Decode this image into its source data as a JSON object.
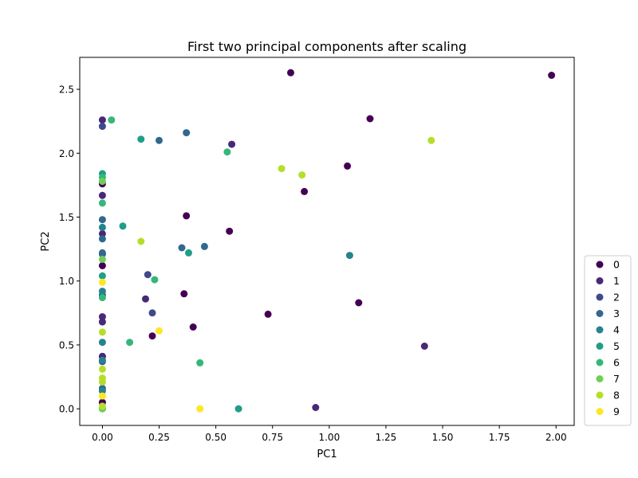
{
  "chart_data": {
    "type": "scatter",
    "title": "First two principal components after scaling",
    "xlabel": "PC1",
    "ylabel": "PC2",
    "xlim": [
      -0.1,
      2.08
    ],
    "ylim": [
      -0.13,
      2.75
    ],
    "xticks": [
      0.0,
      0.25,
      0.5,
      0.75,
      1.0,
      1.25,
      1.5,
      1.75,
      2.0
    ],
    "xtick_labels": [
      "0.00",
      "0.25",
      "0.50",
      "0.75",
      "1.00",
      "1.25",
      "1.50",
      "1.75",
      "2.00"
    ],
    "yticks": [
      0.0,
      0.5,
      1.0,
      1.5,
      2.0,
      2.5
    ],
    "ytick_labels": [
      "0.0",
      "0.5",
      "1.0",
      "1.5",
      "2.0",
      "2.5"
    ],
    "grid": false,
    "legend_position": "lower-right outside",
    "colormap": "viridis",
    "series": [
      {
        "name": "0",
        "color": "#440154",
        "points": [
          [
            0.83,
            2.63
          ],
          [
            1.98,
            2.61
          ],
          [
            1.18,
            2.27
          ],
          [
            1.08,
            1.9
          ],
          [
            0.89,
            1.7
          ],
          [
            0.37,
            1.51
          ],
          [
            0.56,
            1.39
          ],
          [
            1.13,
            0.83
          ],
          [
            0.73,
            0.74
          ],
          [
            0.36,
            0.9
          ],
          [
            0.4,
            0.64
          ],
          [
            0.22,
            0.57
          ],
          [
            0.0,
            1.76
          ],
          [
            0.0,
            1.12
          ],
          [
            0.0,
            0.05
          ],
          [
            0.0,
            0.41
          ]
        ]
      },
      {
        "name": "1",
        "color": "#482878",
        "points": [
          [
            0.57,
            2.07
          ],
          [
            0.19,
            0.86
          ],
          [
            1.42,
            0.49
          ],
          [
            0.94,
            0.01
          ],
          [
            0.0,
            2.26
          ],
          [
            0.0,
            1.67
          ],
          [
            0.0,
            1.37
          ],
          [
            0.0,
            0.72
          ],
          [
            0.0,
            0.68
          ],
          [
            0.0,
            0.41
          ]
        ]
      },
      {
        "name": "2",
        "color": "#3e4a89",
        "points": [
          [
            0.0,
            2.21
          ],
          [
            0.0,
            1.21
          ],
          [
            0.0,
            0.89
          ],
          [
            0.0,
            0.37
          ],
          [
            0.2,
            1.05
          ],
          [
            0.22,
            0.75
          ]
        ]
      },
      {
        "name": "3",
        "color": "#31688e",
        "points": [
          [
            0.37,
            2.16
          ],
          [
            0.25,
            2.1
          ],
          [
            0.45,
            1.27
          ],
          [
            0.35,
            1.26
          ],
          [
            0.0,
            1.48
          ],
          [
            0.0,
            1.33
          ],
          [
            0.0,
            1.22
          ],
          [
            0.0,
            0.16
          ]
        ]
      },
      {
        "name": "4",
        "color": "#26828e",
        "points": [
          [
            1.09,
            1.2
          ],
          [
            0.0,
            1.42
          ],
          [
            0.0,
            0.92
          ],
          [
            0.0,
            0.52
          ],
          [
            0.0,
            0.38
          ],
          [
            0.0,
            0.14
          ]
        ]
      },
      {
        "name": "5",
        "color": "#1f9e89",
        "points": [
          [
            0.17,
            2.11
          ],
          [
            0.09,
            1.43
          ],
          [
            0.38,
            1.22
          ],
          [
            0.6,
            0.0
          ],
          [
            0.0,
            1.84
          ],
          [
            0.0,
            1.04
          ]
        ]
      },
      {
        "name": "6",
        "color": "#35b779",
        "points": [
          [
            0.04,
            2.26
          ],
          [
            0.55,
            2.01
          ],
          [
            0.23,
            1.01
          ],
          [
            0.12,
            0.52
          ],
          [
            0.43,
            0.36
          ],
          [
            0.0,
            1.81
          ],
          [
            0.0,
            1.61
          ],
          [
            0.0,
            0.87
          ],
          [
            0.0,
            0.0
          ]
        ]
      },
      {
        "name": "7",
        "color": "#6ece58",
        "points": [
          [
            0.0,
            1.78
          ],
          [
            0.0,
            1.17
          ],
          [
            0.0,
            0.0
          ]
        ]
      },
      {
        "name": "8",
        "color": "#b5de2b",
        "points": [
          [
            1.45,
            2.1
          ],
          [
            0.79,
            1.88
          ],
          [
            0.88,
            1.83
          ],
          [
            0.17,
            1.31
          ],
          [
            0.0,
            0.6
          ],
          [
            0.0,
            0.31
          ],
          [
            0.0,
            0.24
          ],
          [
            0.0,
            0.21
          ],
          [
            0.0,
            0.02
          ]
        ]
      },
      {
        "name": "9",
        "color": "#fde725",
        "points": [
          [
            0.25,
            0.61
          ],
          [
            0.43,
            0.0
          ],
          [
            0.0,
            0.99
          ],
          [
            0.0,
            0.1
          ]
        ]
      }
    ]
  }
}
